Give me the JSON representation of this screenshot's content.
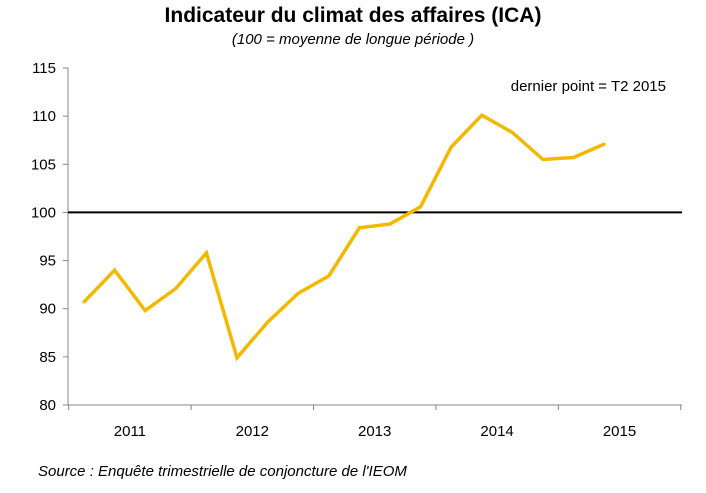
{
  "chart_data": {
    "type": "line",
    "title": "Indicateur du climat des affaires (ICA)",
    "subtitle": "(100 = moyenne de longue période )",
    "source": "Source : Enquête trimestrielle de conjoncture de l'IEOM",
    "annotation": "dernier point = T2 2015",
    "xlabel": "",
    "ylabel": "",
    "x_tick_labels": [
      "2011",
      "2012",
      "2013",
      "2014",
      "2015"
    ],
    "y_ticks": [
      80,
      85,
      90,
      95,
      100,
      105,
      110,
      115
    ],
    "ylim": [
      80,
      115
    ],
    "reference_line": 100,
    "grid": false,
    "line_color": "#F5B800",
    "reference_color": "#000000",
    "series": [
      {
        "x": [
          "T1 2011",
          "T2 2011",
          "T3 2011",
          "T4 2011",
          "T1 2012",
          "T2 2012",
          "T3 2012",
          "T4 2012",
          "T1 2013",
          "T2 2013",
          "T3 2013",
          "T4 2013",
          "T1 2014",
          "T2 2014",
          "T3 2014",
          "T4 2014",
          "T1 2015",
          "T2 2015"
        ],
        "values": [
          90.7,
          94.0,
          89.8,
          92.1,
          95.8,
          84.9,
          88.6,
          91.6,
          93.4,
          98.4,
          98.8,
          100.6,
          106.8,
          110.1,
          108.3,
          105.5,
          105.7,
          107.1
        ]
      }
    ]
  }
}
